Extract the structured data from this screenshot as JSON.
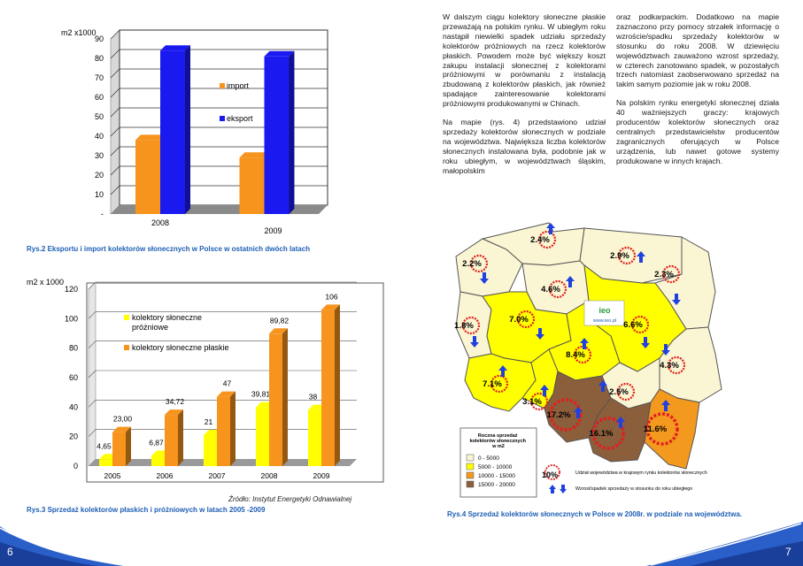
{
  "pages": {
    "left": "6",
    "right": "7"
  },
  "captions": {
    "rys2": "Rys.2   Eksportu i import kolektorów słonecznych w  Polsce w ostatnich dwóch latach",
    "rys3": "Rys.3 Sprzedaż kolektorów płaskich i próżniowych w latach 2005 -2009",
    "rys4": "Rys.4 Sprzedaż kolektorów słonecznych w Polsce w 2008r. w podziale na województwa."
  },
  "source": "Źródło:  Instytut Energetyki Odnawialnej",
  "text": {
    "col1_p1": "W dalszym ciągu kolektory słoneczne płaskie przeważają na polskim rynku. W ubiegłym roku nastąpił niewielki spadek udziału sprzedaży kolektorów próżniowych na rzecz kolektorów płaskich. Powodem może być większy koszt zakupu instalacji słonecznej z kolektorami próżniowymi w porównaniu z instalacją zbudowaną z kolektorów płaskich, jak również spadające zainteresowanie kolektorami próżniowymi produkowanymi w Chinach.",
    "col1_p2": "Na mapie (rys. 4) przedstawiono udział sprzedaży kolektorów słonecznych w podziale na województwa. Największa liczba kolektorów słonecznych instalowana była, podobnie jak w roku ubiegłym, w województwach śląskim, małopolskim",
    "col2_p1": "oraz podkarpackim. Dodatkowo na mapie zaznaczono przy pomocy strzałek informację o wzroście/spadku sprzedaży kolektorów w stosunku do roku 2008. W dziewięciu województwach zauważono wzrost sprzedaży, w czterech zanotowano spadek, w pozostałych trzech natomiast zaobserwowano sprzedaż na takim samym poziomie jak w roku 2008.",
    "col2_p2": "Na polskim rynku energetyki słonecznej działa 40 ważniejszych graczy: krajowych producentów kolektorów słonecznych oraz centralnych przedstawicielstw producentów zagranicznych oferujących w Polsce urządzenia, lub nawet gotowe systemy produkowane w innych krajach."
  },
  "chart_data": [
    {
      "type": "bar",
      "ylabel": "m2 x1000",
      "categories": [
        "2008",
        "2009"
      ],
      "series": [
        {
          "name": "import",
          "values": [
            38,
            29
          ],
          "color": "#f7941d"
        },
        {
          "name": "eksport",
          "values": [
            84,
            81
          ],
          "color": "#1a1af0"
        }
      ],
      "ylim": [
        0,
        90
      ],
      "yticks": [
        "-",
        "10",
        "20",
        "30",
        "40",
        "50",
        "60",
        "70",
        "80",
        "90"
      ],
      "grid": true,
      "legend": "inside-right"
    },
    {
      "type": "bar",
      "ylabel": "m2 x 1000",
      "categories": [
        "2005",
        "2006",
        "2007",
        "2008",
        "2009"
      ],
      "series": [
        {
          "name": "kolektory słoneczne próżniowe",
          "values": [
            4.65,
            6.87,
            21,
            39.81,
            38
          ],
          "labels": [
            "4,65",
            "6,87",
            "21",
            "39,81",
            "38"
          ],
          "color": "#ffff00"
        },
        {
          "name": "kolektory słoneczne płaskie",
          "values": [
            23.0,
            34.72,
            47,
            89.82,
            106
          ],
          "labels": [
            "23,00",
            "34,72",
            "47",
            "89,82",
            "106"
          ],
          "color": "#f7941d"
        }
      ],
      "ylim": [
        0,
        120
      ],
      "yticks": [
        "0",
        "20",
        "40",
        "60",
        "80",
        "100",
        "120"
      ],
      "grid": true,
      "legend": "inside-left"
    }
  ],
  "map": {
    "legend_title": "Roczna sprzedaż kolektorów słonecznych w m2",
    "legend_items": [
      {
        "label": "0 - 5000",
        "color": "#faf5d2"
      },
      {
        "label": "5000 - 10000",
        "color": "#ffff00"
      },
      {
        "label": "10000 - 15000",
        "color": "#f39a1e"
      },
      {
        "label": "15000 - 20000",
        "color": "#8b5e3c"
      }
    ],
    "share_label": "Udział województwa w krajowym rynku kolektorów słonecznych",
    "share_sample": "10%",
    "arrow_label": "Wzrost/spadek sprzedaży w stosunku do roku ubiegłego",
    "logo": "ieo",
    "website": "www.ieo.pl",
    "regions": [
      {
        "id": "pomorskie",
        "value": "2.4%"
      },
      {
        "id": "zachodniopomorskie",
        "value": "2.2%"
      },
      {
        "id": "warminsko-mazurskie",
        "value": "2.9%"
      },
      {
        "id": "podlaskie",
        "value": "2.3%"
      },
      {
        "id": "kujawsko-pomorskie",
        "value": "4.6%"
      },
      {
        "id": "lubuskie",
        "value": "1.8%"
      },
      {
        "id": "wielkopolskie",
        "value": "7.0%"
      },
      {
        "id": "mazowieckie",
        "value": "6.6%"
      },
      {
        "id": "lodzkie",
        "value": "8.4%"
      },
      {
        "id": "lubelskie",
        "value": "4.3%"
      },
      {
        "id": "dolnoslaskie",
        "value": "7.1%"
      },
      {
        "id": "opolskie",
        "value": "3.1%"
      },
      {
        "id": "swietokrzyskie",
        "value": "2.5%"
      },
      {
        "id": "slaskie",
        "value": "17.2%"
      },
      {
        "id": "malopolskie",
        "value": "16.1%"
      },
      {
        "id": "podkarpackie",
        "value": "11.6%"
      }
    ]
  }
}
